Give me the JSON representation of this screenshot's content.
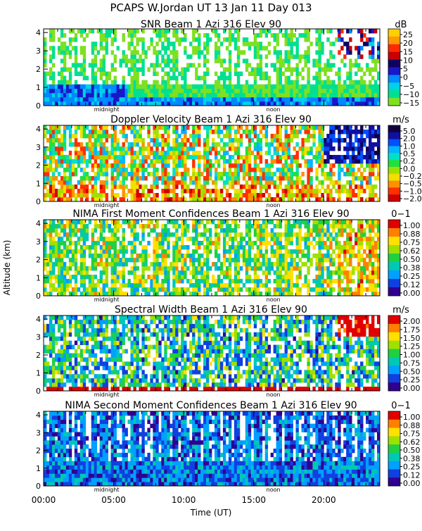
{
  "page": {
    "title": "PCAPS W.Jordan UT  13 Jan 11 Day 013",
    "ylabel": "Altitude (km)",
    "xlabel": "Time (UT)",
    "time_ticks": [
      "00:00",
      "05:00",
      "10:00",
      "15:00",
      "20:00"
    ],
    "time_tick_values": [
      0,
      5,
      10,
      15,
      20
    ],
    "midnight_label": "midnight",
    "noon_label": "noon",
    "altitude_ticks": [
      "0",
      "1",
      "2",
      "3",
      "4"
    ]
  },
  "chart_data": [
    {
      "type": "heatmap",
      "title": "SNR Beam 1 Azi 316 Elev 90",
      "unit": "dB",
      "x_range": [
        0,
        24
      ],
      "ylim": [
        0,
        4.2
      ],
      "colorbar_labels": [
        "25",
        "20",
        "15",
        "10",
        "5",
        "0",
        "−5",
        "−10",
        "−15"
      ],
      "colorbar_values": [
        25,
        20,
        15,
        10,
        5,
        0,
        -5,
        -10,
        -15
      ],
      "colors": [
        "#ffd000",
        "#ff9a00",
        "#ff2a00",
        "#c80000",
        "#100060",
        "#1818c8",
        "#0088ff",
        "#00d2e6",
        "#00e090",
        "#7fe020"
      ]
    },
    {
      "type": "heatmap",
      "title": "Doppler Velocity Beam 1 Azi 316 Elev 90",
      "unit": "m/s",
      "x_range": [
        0,
        24
      ],
      "ylim": [
        0,
        4.2
      ],
      "colorbar_labels": [
        "5.0",
        "2.0",
        "1.0",
        "0.5",
        "0.2",
        "0.0",
        "−0.2",
        "−0.5",
        "−1.0",
        "−2.0"
      ],
      "colorbar_values": [
        5.0,
        2.0,
        1.0,
        0.5,
        0.2,
        0.0,
        -0.2,
        -0.5,
        -1.0,
        -2.0
      ],
      "colors": [
        "#100040",
        "#1010a0",
        "#0050ff",
        "#00b4ff",
        "#00e0c8",
        "#20e040",
        "#a0e000",
        "#f0e000",
        "#ff9000",
        "#ff3000",
        "#d00000"
      ]
    },
    {
      "type": "heatmap",
      "title": "NIMA First Moment Confidences Beam 1 Azi 316 Elev 90",
      "unit": "0−1",
      "x_range": [
        0,
        24
      ],
      "ylim": [
        0,
        4.2
      ],
      "colorbar_labels": [
        "1.00",
        "0.88",
        "0.75",
        "0.62",
        "0.50",
        "0.38",
        "0.25",
        "0.12",
        "0.00"
      ],
      "colorbar_values": [
        1.0,
        0.88,
        0.75,
        0.62,
        0.5,
        0.38,
        0.25,
        0.12,
        0.0
      ],
      "colors": [
        "#e00000",
        "#ff8000",
        "#ffe000",
        "#a0e000",
        "#20d040",
        "#00c8b4",
        "#00a0ff",
        "#1040e0",
        "#300090"
      ]
    },
    {
      "type": "heatmap",
      "title": "Spectral Width Beam 1 Azi 316 Elev 90",
      "unit": "m/s",
      "x_range": [
        0,
        24
      ],
      "ylim": [
        0,
        4.2
      ],
      "colorbar_labels": [
        "2.00",
        "1.75",
        "1.50",
        "1.25",
        "1.00",
        "0.75",
        "0.50",
        "0.25",
        "0.00"
      ],
      "colorbar_values": [
        2.0,
        1.75,
        1.5,
        1.25,
        1.0,
        0.75,
        0.5,
        0.25,
        0.0
      ],
      "colors": [
        "#e00000",
        "#ff8000",
        "#ffe000",
        "#a0e000",
        "#20d040",
        "#00c8b4",
        "#00a0ff",
        "#1040e0",
        "#300090"
      ]
    },
    {
      "type": "heatmap",
      "title": "NIMA Second Moment Confidences Beam 1 Azi 316 Elev 90",
      "unit": "0−1",
      "x_range": [
        0,
        24
      ],
      "ylim": [
        0,
        4.2
      ],
      "colorbar_labels": [
        "1.00",
        "0.88",
        "0.75",
        "0.62",
        "0.50",
        "0.38",
        "0.25",
        "0.12",
        "0.00"
      ],
      "colorbar_values": [
        1.0,
        0.88,
        0.75,
        0.62,
        0.5,
        0.38,
        0.25,
        0.12,
        0.0
      ],
      "colors": [
        "#e00000",
        "#ff8000",
        "#ffe000",
        "#a0e000",
        "#20d040",
        "#00c8b4",
        "#00a0ff",
        "#1040e0",
        "#300090"
      ]
    }
  ]
}
